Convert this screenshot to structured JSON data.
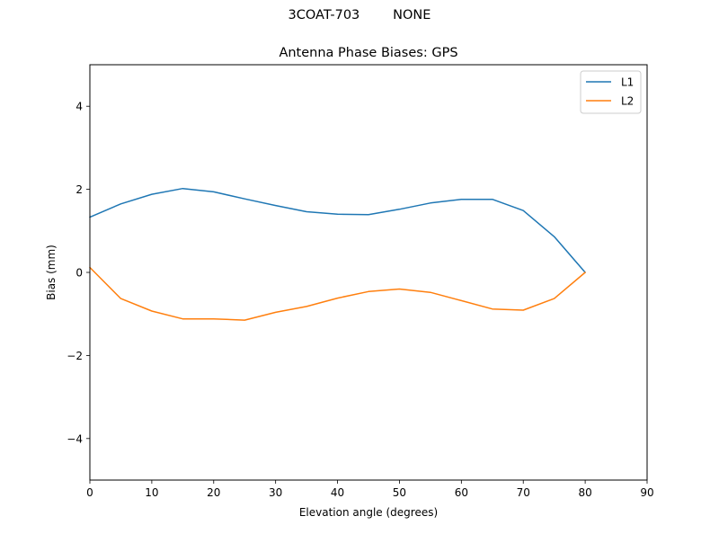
{
  "figure": {
    "suptitle": "3COAT-703        NONE"
  },
  "chart_data": {
    "type": "line",
    "title": "Antenna Phase Biases: GPS",
    "xlabel": "Elevation angle (degrees)",
    "ylabel": "Bias (mm)",
    "xlim": [
      0,
      90
    ],
    "ylim": [
      -5,
      5
    ],
    "xticks": [
      0,
      10,
      20,
      30,
      40,
      50,
      60,
      70,
      80,
      90
    ],
    "yticks": [
      -4,
      -2,
      0,
      2,
      4
    ],
    "ytick_labels": [
      "−4",
      "−2",
      "0",
      "2",
      "4"
    ],
    "grid": false,
    "legend_position": "top-right",
    "x": [
      0,
      5,
      10,
      15,
      20,
      25,
      30,
      35,
      40,
      45,
      50,
      55,
      60,
      65,
      70,
      75,
      80
    ],
    "series": [
      {
        "name": "L1",
        "color": "#1f77b4",
        "values": [
          1.33,
          1.65,
          1.88,
          2.02,
          1.94,
          1.77,
          1.61,
          1.46,
          1.4,
          1.39,
          1.52,
          1.67,
          1.76,
          1.76,
          1.49,
          0.86,
          0.0
        ]
      },
      {
        "name": "L2",
        "color": "#ff7f0e",
        "values": [
          0.12,
          -0.63,
          -0.93,
          -1.12,
          -1.12,
          -1.15,
          -0.96,
          -0.82,
          -0.62,
          -0.46,
          -0.4,
          -0.48,
          -0.68,
          -0.88,
          -0.91,
          -0.63,
          0.0
        ]
      }
    ]
  }
}
